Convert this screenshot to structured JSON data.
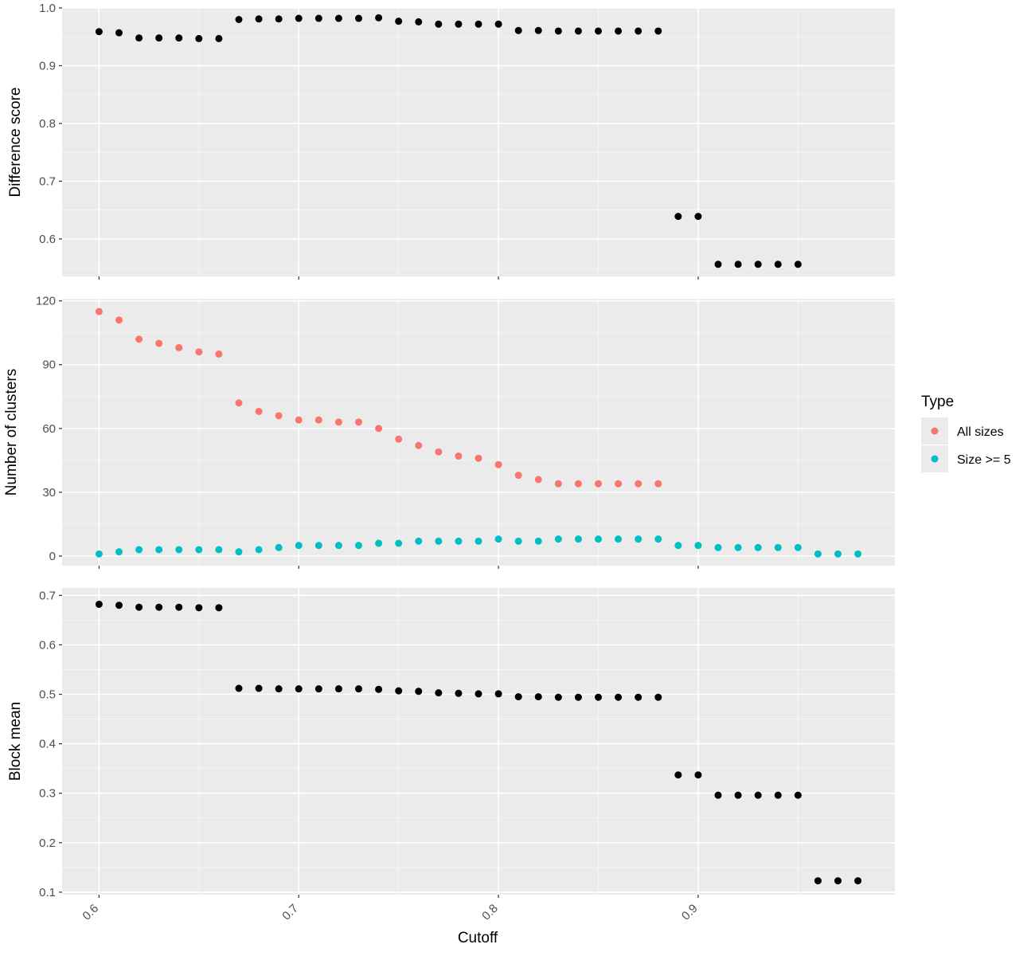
{
  "chart_data": [
    {
      "type": "scatter",
      "ylabel": "Difference score",
      "xlim": [
        0.5815,
        0.9985
      ],
      "ylim": [
        0.535,
        1.0
      ],
      "y_ticks": [
        0.6,
        0.7,
        0.8,
        0.9,
        1.0
      ],
      "y_tick_labels": [
        "0.6",
        "0.7",
        "0.8",
        "0.9",
        "1.0"
      ],
      "grid": true,
      "series": [
        {
          "color": "#000000",
          "x": [
            0.6,
            0.61,
            0.62,
            0.63,
            0.64,
            0.65,
            0.66,
            0.67,
            0.68,
            0.69,
            0.7,
            0.71,
            0.72,
            0.73,
            0.74,
            0.75,
            0.76,
            0.77,
            0.78,
            0.79,
            0.8,
            0.81,
            0.82,
            0.83,
            0.84,
            0.85,
            0.86,
            0.87,
            0.88,
            0.89,
            0.9,
            0.91,
            0.92,
            0.93,
            0.94,
            0.95
          ],
          "y": [
            0.959,
            0.957,
            0.948,
            0.948,
            0.948,
            0.947,
            0.947,
            0.98,
            0.981,
            0.981,
            0.982,
            0.982,
            0.982,
            0.982,
            0.983,
            0.977,
            0.976,
            0.972,
            0.972,
            0.972,
            0.972,
            0.961,
            0.961,
            0.96,
            0.96,
            0.96,
            0.96,
            0.96,
            0.96,
            0.639,
            0.639,
            0.556,
            0.556,
            0.556,
            0.556,
            0.556
          ]
        }
      ]
    },
    {
      "type": "scatter",
      "ylabel": "Number of clusters",
      "xlim": [
        0.5815,
        0.9985
      ],
      "ylim": [
        -4.5,
        121
      ],
      "y_ticks": [
        0,
        30,
        60,
        90,
        120
      ],
      "y_tick_labels": [
        "0",
        "30",
        "60",
        "90",
        "120"
      ],
      "grid": true,
      "legend": {
        "title": "Type",
        "position": "right",
        "entries": [
          "All sizes",
          "Size >= 5"
        ]
      },
      "series": [
        {
          "name": "All sizes",
          "color": "#F8766D",
          "x": [
            0.6,
            0.61,
            0.62,
            0.63,
            0.64,
            0.65,
            0.66,
            0.67,
            0.68,
            0.69,
            0.7,
            0.71,
            0.72,
            0.73,
            0.74,
            0.75,
            0.76,
            0.77,
            0.78,
            0.79,
            0.8,
            0.81,
            0.82,
            0.83,
            0.84,
            0.85,
            0.86,
            0.87,
            0.88
          ],
          "y": [
            115,
            111,
            102,
            100,
            98,
            96,
            95,
            72,
            68,
            66,
            64,
            64,
            63,
            63,
            60,
            55,
            52,
            49,
            47,
            46,
            43,
            38,
            36,
            34,
            34,
            34,
            34,
            34,
            34
          ]
        },
        {
          "name": "Size >= 5",
          "color": "#00BFC4",
          "x": [
            0.6,
            0.61,
            0.62,
            0.63,
            0.64,
            0.65,
            0.66,
            0.67,
            0.68,
            0.69,
            0.7,
            0.71,
            0.72,
            0.73,
            0.74,
            0.75,
            0.76,
            0.77,
            0.78,
            0.79,
            0.8,
            0.81,
            0.82,
            0.83,
            0.84,
            0.85,
            0.86,
            0.87,
            0.88,
            0.89,
            0.9,
            0.91,
            0.92,
            0.93,
            0.94,
            0.95,
            0.96,
            0.97,
            0.98
          ],
          "y": [
            1,
            2,
            3,
            3,
            3,
            3,
            3,
            2,
            3,
            4,
            5,
            5,
            5,
            5,
            6,
            6,
            7,
            7,
            7,
            7,
            8,
            7,
            7,
            8,
            8,
            8,
            8,
            8,
            8,
            5,
            5,
            4,
            4,
            4,
            4,
            4,
            1,
            1,
            1
          ]
        }
      ]
    },
    {
      "type": "scatter",
      "xlabel": "Cutoff",
      "ylabel": "Block mean",
      "xlim": [
        0.5815,
        0.9985
      ],
      "ylim": [
        0.095,
        0.715
      ],
      "x_ticks": [
        0.6,
        0.7,
        0.8,
        0.9
      ],
      "x_tick_labels": [
        "0.6",
        "0.7",
        "0.8",
        "0.9"
      ],
      "y_ticks": [
        0.1,
        0.2,
        0.3,
        0.4,
        0.5,
        0.6,
        0.7
      ],
      "y_tick_labels": [
        "0.1",
        "0.2",
        "0.3",
        "0.4",
        "0.5",
        "0.6",
        "0.7"
      ],
      "grid": true,
      "series": [
        {
          "color": "#000000",
          "x": [
            0.6,
            0.61,
            0.62,
            0.63,
            0.64,
            0.65,
            0.66,
            0.67,
            0.68,
            0.69,
            0.7,
            0.71,
            0.72,
            0.73,
            0.74,
            0.75,
            0.76,
            0.77,
            0.78,
            0.79,
            0.8,
            0.81,
            0.82,
            0.83,
            0.84,
            0.85,
            0.86,
            0.87,
            0.88,
            0.89,
            0.9,
            0.91,
            0.92,
            0.93,
            0.94,
            0.95,
            0.96,
            0.97,
            0.98
          ],
          "y": [
            0.682,
            0.68,
            0.676,
            0.676,
            0.676,
            0.675,
            0.675,
            0.512,
            0.512,
            0.511,
            0.511,
            0.511,
            0.511,
            0.511,
            0.51,
            0.507,
            0.506,
            0.503,
            0.502,
            0.501,
            0.501,
            0.495,
            0.495,
            0.494,
            0.494,
            0.494,
            0.494,
            0.494,
            0.494,
            0.337,
            0.337,
            0.296,
            0.296,
            0.296,
            0.296,
            0.296,
            0.123,
            0.123,
            0.123
          ]
        }
      ]
    }
  ]
}
